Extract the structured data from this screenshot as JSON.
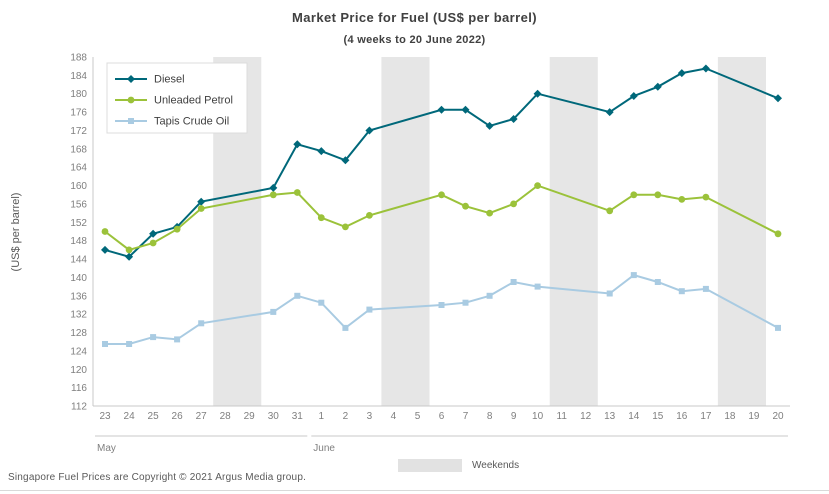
{
  "footer": "Singapore Fuel Prices are Copyright © 2021 Argus Media group.",
  "chart_data": {
    "type": "line",
    "title": "Market Price for Fuel (US$ per barrel)",
    "subtitle": "(4 weeks to 20 June 2022)",
    "xlabel": "",
    "ylabel": "(US$ per barrel)",
    "ylim": [
      112,
      188
    ],
    "ytick_step": 4,
    "grid": false,
    "legend_position": "top-left",
    "weekend_label": "Weekends",
    "weekend_color": "#e6e6e6",
    "categories": [
      "23",
      "24",
      "25",
      "26",
      "27",
      "28",
      "29",
      "30",
      "31",
      "1",
      "2",
      "3",
      "4",
      "5",
      "6",
      "7",
      "8",
      "9",
      "10",
      "11",
      "12",
      "13",
      "14",
      "15",
      "16",
      "17",
      "18",
      "19",
      "20"
    ],
    "months": [
      {
        "label": "May",
        "from": 0,
        "to": 8
      },
      {
        "label": "June",
        "from": 9,
        "to": 28
      }
    ],
    "weekend_slots": [
      [
        5,
        6
      ],
      [
        12,
        13
      ],
      [
        19,
        20
      ],
      [
        26,
        27
      ]
    ],
    "series": [
      {
        "name": "Diesel",
        "color": "#00687a",
        "marker": "diamond",
        "values": [
          146,
          144.5,
          149.5,
          151,
          156.5,
          null,
          null,
          159.5,
          169,
          167.5,
          165.5,
          172,
          null,
          null,
          176.5,
          176.5,
          173,
          174.5,
          180,
          null,
          null,
          176,
          179.5,
          181.5,
          184.5,
          185.5,
          null,
          null,
          179
        ]
      },
      {
        "name": "Unleaded Petrol",
        "color": "#9bc23a",
        "marker": "circle",
        "values": [
          150,
          146,
          147.5,
          150.5,
          155,
          null,
          null,
          158,
          158.5,
          153,
          151,
          153.5,
          null,
          null,
          158,
          155.5,
          154,
          156,
          160,
          null,
          null,
          154.5,
          158,
          158,
          157,
          157.5,
          null,
          null,
          149.5
        ]
      },
      {
        "name": "Tapis Crude Oil",
        "color": "#a9cbe2",
        "marker": "square",
        "values": [
          125.5,
          125.5,
          127,
          126.5,
          130,
          null,
          null,
          132.5,
          136,
          134.5,
          129,
          133,
          null,
          null,
          134,
          134.5,
          136,
          139,
          138,
          null,
          null,
          136.5,
          140.5,
          139,
          137,
          137.5,
          null,
          null,
          129
        ]
      }
    ]
  }
}
